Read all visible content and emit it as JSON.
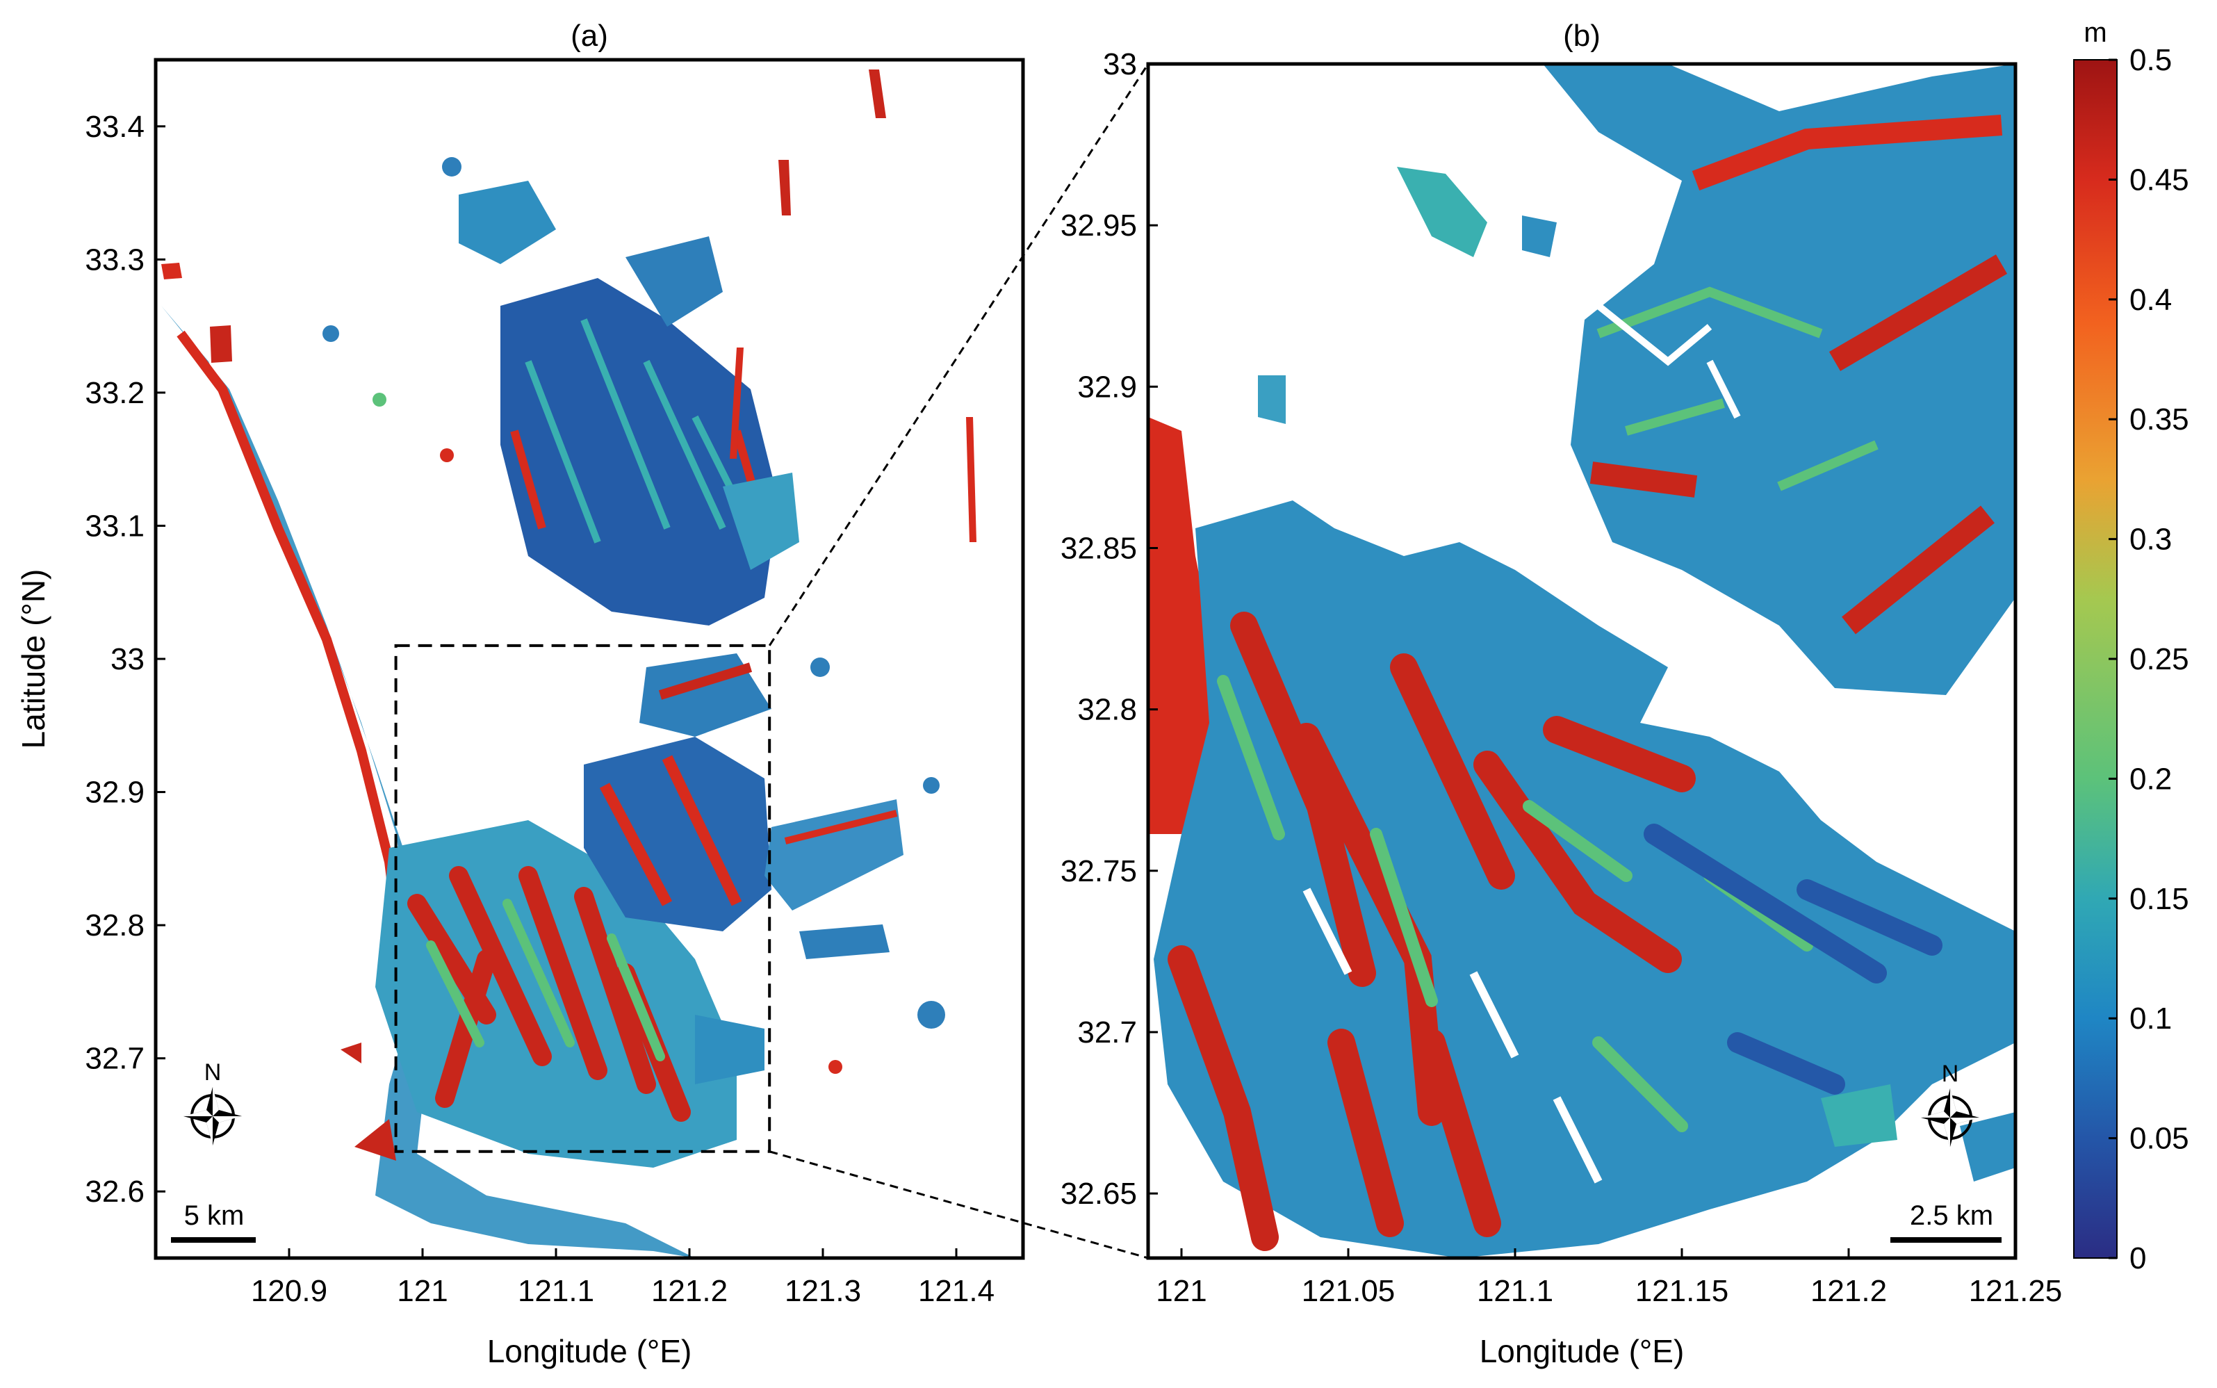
{
  "panels": [
    {
      "id": "a",
      "title": "(a)",
      "xlabel": "Longitude (°E)",
      "ylabel": "Latitude (°N)",
      "xlim": [
        120.8,
        121.45
      ],
      "ylim": [
        32.55,
        33.45
      ],
      "xticks": [
        {
          "value": 120.9,
          "label": "120.9"
        },
        {
          "value": 121.0,
          "label": "121"
        },
        {
          "value": 121.1,
          "label": "121.1"
        },
        {
          "value": 121.2,
          "label": "121.2"
        },
        {
          "value": 121.3,
          "label": "121.3"
        },
        {
          "value": 121.4,
          "label": "121.4"
        }
      ],
      "yticks": [
        {
          "value": 32.6,
          "label": "32.6"
        },
        {
          "value": 32.7,
          "label": "32.7"
        },
        {
          "value": 32.8,
          "label": "32.8"
        },
        {
          "value": 32.9,
          "label": "32.9"
        },
        {
          "value": 33.0,
          "label": "33"
        },
        {
          "value": 33.1,
          "label": "33.1"
        },
        {
          "value": 33.2,
          "label": "33.2"
        },
        {
          "value": 33.3,
          "label": "33.3"
        },
        {
          "value": 33.4,
          "label": "33.4"
        }
      ],
      "scale_bar": "5 km",
      "compass": "N",
      "zoom_box": {
        "lon": [
          120.98,
          121.26
        ],
        "lat": [
          32.63,
          33.01
        ]
      }
    },
    {
      "id": "b",
      "title": "(b)",
      "xlim": [
        120.99,
        121.25
      ],
      "ylim": [
        32.63,
        33.0
      ],
      "xlabel": "Longitude (°E)",
      "xticks": [
        {
          "value": 121.0,
          "label": "121"
        },
        {
          "value": 121.05,
          "label": "121.05"
        },
        {
          "value": 121.1,
          "label": "121.1"
        },
        {
          "value": 121.15,
          "label": "121.15"
        },
        {
          "value": 121.2,
          "label": "121.2"
        },
        {
          "value": 121.25,
          "label": "121.25"
        }
      ],
      "yticks": [
        {
          "value": 32.65,
          "label": "32.65"
        },
        {
          "value": 32.7,
          "label": "32.7"
        },
        {
          "value": 32.75,
          "label": "32.75"
        },
        {
          "value": 32.8,
          "label": "32.8"
        },
        {
          "value": 32.85,
          "label": "32.85"
        },
        {
          "value": 32.9,
          "label": "32.9"
        },
        {
          "value": 32.95,
          "label": "32.95"
        },
        {
          "value": 33.0,
          "label": "33"
        }
      ],
      "scale_bar": "2.5 km",
      "compass": "N"
    }
  ],
  "colorbar": {
    "unit": "m",
    "range": [
      0,
      0.5
    ],
    "ticks": [
      {
        "value": 0,
        "label": "0"
      },
      {
        "value": 0.05,
        "label": "0.05"
      },
      {
        "value": 0.1,
        "label": "0.1"
      },
      {
        "value": 0.15,
        "label": "0.15"
      },
      {
        "value": 0.2,
        "label": "0.2"
      },
      {
        "value": 0.25,
        "label": "0.25"
      },
      {
        "value": 0.3,
        "label": "0.3"
      },
      {
        "value": 0.35,
        "label": "0.35"
      },
      {
        "value": 0.4,
        "label": "0.4"
      },
      {
        "value": 0.45,
        "label": "0.45"
      },
      {
        "value": 0.5,
        "label": "0.5"
      }
    ],
    "colors": [
      "#2b2d84",
      "#2456a8",
      "#1f86c4",
      "#30a8b4",
      "#5cc27a",
      "#a5c850",
      "#eaa232",
      "#f2621f",
      "#d72b1d",
      "#9e1413"
    ]
  }
}
